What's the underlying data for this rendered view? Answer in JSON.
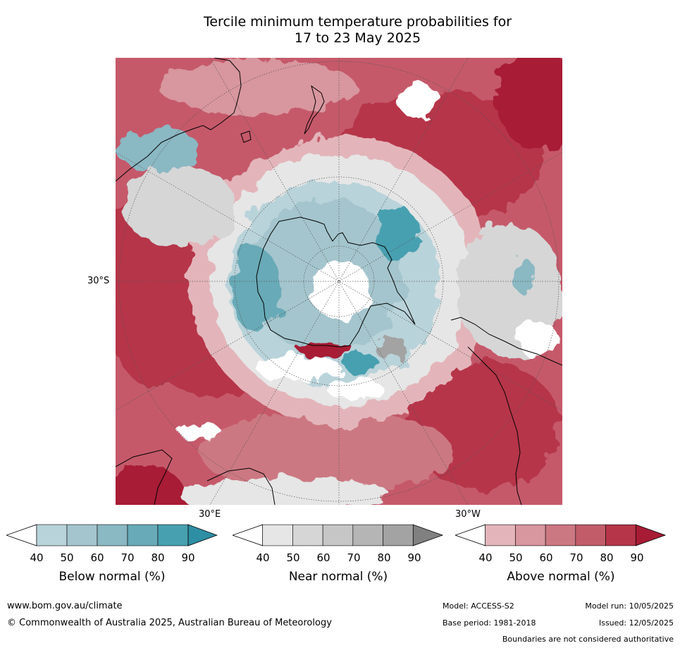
{
  "title": {
    "line1": "Tercile minimum temperature probabilities for",
    "line2": "17 to 23 May 2025"
  },
  "map": {
    "projection": "south-polar-stereographic",
    "lat_label": "30°S",
    "lon_labels": [
      "30°E",
      "30°W"
    ],
    "colors": {
      "below": [
        "#b9d3da",
        "#a4c5cd",
        "#8ab8c3",
        "#68aab7",
        "#47a0b0",
        "#2e8ea3"
      ],
      "near": [
        "#e6e6e6",
        "#d6d6d6",
        "#c6c6c6",
        "#b5b5b5",
        "#a3a3a3",
        "#808080"
      ],
      "above": [
        "#e3b5ba",
        "#d8969e",
        "#cc7882",
        "#c25c69",
        "#b63549",
        "#a81b35"
      ],
      "coast": "#000000"
    }
  },
  "legend": {
    "below": {
      "title": "Below normal (%)",
      "ticks": [
        "40",
        "50",
        "60",
        "70",
        "80",
        "90"
      ]
    },
    "near": {
      "title": "Near normal (%)",
      "ticks": [
        "40",
        "50",
        "60",
        "70",
        "80",
        "90"
      ]
    },
    "above": {
      "title": "Above normal (%)",
      "ticks": [
        "40",
        "50",
        "60",
        "70",
        "80",
        "90"
      ]
    }
  },
  "footer": {
    "website": "www.bom.gov.au/climate",
    "copyright": "© Commonwealth of Australia 2025, Australian Bureau of Meteorology",
    "model": "Model: ACCESS-S2",
    "model_run": "Model run: 10/05/2025",
    "base_period": "Base period: 1981-2018",
    "issued": "Issued: 12/05/2025",
    "disclaimer": "Boundaries are not considered authoritative"
  }
}
